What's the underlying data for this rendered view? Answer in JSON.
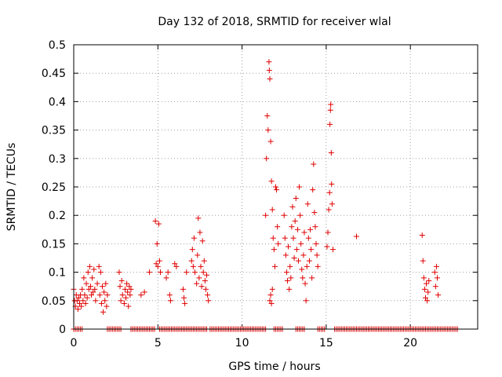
{
  "chart_data": {
    "type": "scatter",
    "title": "Day 132 of 2018, SRMTID for receiver wlal",
    "xlabel": "GPS time / hours",
    "ylabel": "SRMTID / TECUs",
    "xlim": [
      0,
      24
    ],
    "ylim": [
      0,
      0.5
    ],
    "xticks": [
      0,
      5,
      10,
      15,
      20
    ],
    "yticks": [
      0,
      0.05,
      0.1,
      0.15,
      0.2,
      0.25,
      0.3,
      0.35,
      0.4,
      0.45,
      0.5
    ],
    "xtick_labels": [
      "0",
      "5",
      "10",
      "15",
      "20"
    ],
    "ytick_labels": [
      "0",
      "0.05",
      "0.1",
      "0.15",
      "0.2",
      "0.25",
      "0.3",
      "0.35",
      "0.4",
      "0.45",
      "0.5"
    ],
    "grid": true,
    "marker": "+",
    "color": "#e00000",
    "series": [
      {
        "points": [
          [
            0.0,
            0.07
          ],
          [
            0.05,
            0.05
          ],
          [
            0.1,
            0.04
          ],
          [
            0.15,
            0.06
          ],
          [
            0.2,
            0.05
          ],
          [
            0.25,
            0.035
          ],
          [
            0.3,
            0.055
          ],
          [
            0.35,
            0.045
          ],
          [
            0.4,
            0.06
          ],
          [
            0.45,
            0.04
          ],
          [
            0.5,
            0.07
          ],
          [
            0.55,
            0.05
          ],
          [
            0.6,
            0.09
          ],
          [
            0.65,
            0.06
          ],
          [
            0.7,
            0.045
          ],
          [
            0.75,
            0.08
          ],
          [
            0.8,
            0.055
          ],
          [
            0.85,
            0.1
          ],
          [
            0.9,
            0.07
          ],
          [
            0.95,
            0.11
          ],
          [
            1.0,
            0.075
          ],
          [
            1.05,
            0.06
          ],
          [
            1.1,
            0.09
          ],
          [
            1.15,
            0.065
          ],
          [
            1.2,
            0.105
          ],
          [
            1.25,
            0.07
          ],
          [
            1.3,
            0.05
          ],
          [
            1.4,
            0.08
          ],
          [
            1.5,
            0.11
          ],
          [
            1.55,
            0.06
          ],
          [
            1.6,
            0.1
          ],
          [
            1.65,
            0.045
          ],
          [
            1.7,
            0.075
          ],
          [
            1.75,
            0.03
          ],
          [
            1.8,
            0.065
          ],
          [
            1.85,
            0.05
          ],
          [
            1.9,
            0.08
          ],
          [
            1.95,
            0.04
          ],
          [
            2.0,
            0.06
          ],
          [
            2.7,
            0.1
          ],
          [
            2.75,
            0.075
          ],
          [
            2.8,
            0.05
          ],
          [
            2.85,
            0.085
          ],
          [
            2.9,
            0.06
          ],
          [
            3.0,
            0.045
          ],
          [
            3.05,
            0.07
          ],
          [
            3.1,
            0.055
          ],
          [
            3.15,
            0.08
          ],
          [
            3.2,
            0.065
          ],
          [
            3.25,
            0.04
          ],
          [
            3.3,
            0.075
          ],
          [
            3.35,
            0.06
          ],
          [
            3.4,
            0.07
          ],
          [
            4.0,
            0.06
          ],
          [
            4.2,
            0.065
          ],
          [
            4.5,
            0.1
          ],
          [
            4.85,
            0.19
          ],
          [
            4.9,
            0.115
          ],
          [
            4.95,
            0.15
          ],
          [
            5.0,
            0.11
          ],
          [
            5.05,
            0.185
          ],
          [
            5.1,
            0.12
          ],
          [
            5.15,
            0.1
          ],
          [
            5.5,
            0.09
          ],
          [
            5.6,
            0.1
          ],
          [
            5.7,
            0.06
          ],
          [
            5.75,
            0.05
          ],
          [
            6.0,
            0.115
          ],
          [
            6.1,
            0.11
          ],
          [
            6.5,
            0.07
          ],
          [
            6.55,
            0.055
          ],
          [
            6.6,
            0.045
          ],
          [
            6.7,
            0.1
          ],
          [
            7.0,
            0.12
          ],
          [
            7.05,
            0.14
          ],
          [
            7.1,
            0.11
          ],
          [
            7.15,
            0.16
          ],
          [
            7.2,
            0.1
          ],
          [
            7.3,
            0.08
          ],
          [
            7.35,
            0.13
          ],
          [
            7.4,
            0.195
          ],
          [
            7.45,
            0.09
          ],
          [
            7.5,
            0.17
          ],
          [
            7.55,
            0.11
          ],
          [
            7.6,
            0.075
          ],
          [
            7.65,
            0.155
          ],
          [
            7.7,
            0.1
          ],
          [
            7.75,
            0.12
          ],
          [
            7.8,
            0.085
          ],
          [
            7.85,
            0.07
          ],
          [
            7.9,
            0.095
          ],
          [
            7.95,
            0.06
          ],
          [
            8.0,
            0.05
          ],
          [
            11.4,
            0.2
          ],
          [
            11.45,
            0.3
          ],
          [
            11.5,
            0.375
          ],
          [
            11.55,
            0.35
          ],
          [
            11.6,
            0.47
          ],
          [
            11.62,
            0.455
          ],
          [
            11.65,
            0.44
          ],
          [
            11.7,
            0.33
          ],
          [
            11.75,
            0.26
          ],
          [
            11.8,
            0.21
          ],
          [
            11.85,
            0.16
          ],
          [
            11.9,
            0.14
          ],
          [
            11.95,
            0.11
          ],
          [
            12.0,
            0.25
          ],
          [
            12.05,
            0.245
          ],
          [
            12.1,
            0.18
          ],
          [
            12.15,
            0.15
          ],
          [
            11.7,
            0.06
          ],
          [
            11.65,
            0.05
          ],
          [
            11.75,
            0.045
          ],
          [
            11.8,
            0.07
          ],
          [
            12.5,
            0.2
          ],
          [
            12.55,
            0.16
          ],
          [
            12.6,
            0.13
          ],
          [
            12.65,
            0.1
          ],
          [
            12.7,
            0.085
          ],
          [
            12.75,
            0.145
          ],
          [
            12.8,
            0.07
          ],
          [
            12.85,
            0.11
          ],
          [
            12.9,
            0.09
          ],
          [
            12.95,
            0.18
          ],
          [
            13.0,
            0.215
          ],
          [
            13.05,
            0.16
          ],
          [
            13.1,
            0.125
          ],
          [
            13.15,
            0.19
          ],
          [
            13.2,
            0.23
          ],
          [
            13.25,
            0.14
          ],
          [
            13.3,
            0.175
          ],
          [
            13.35,
            0.12
          ],
          [
            13.4,
            0.25
          ],
          [
            13.45,
            0.2
          ],
          [
            13.5,
            0.15
          ],
          [
            13.55,
            0.105
          ],
          [
            13.6,
            0.09
          ],
          [
            13.65,
            0.13
          ],
          [
            13.7,
            0.17
          ],
          [
            13.75,
            0.08
          ],
          [
            13.8,
            0.05
          ],
          [
            13.85,
            0.11
          ],
          [
            13.9,
            0.22
          ],
          [
            13.95,
            0.16
          ],
          [
            14.0,
            0.12
          ],
          [
            14.05,
            0.175
          ],
          [
            14.1,
            0.14
          ],
          [
            14.15,
            0.09
          ],
          [
            14.2,
            0.245
          ],
          [
            14.25,
            0.29
          ],
          [
            14.3,
            0.205
          ],
          [
            14.35,
            0.18
          ],
          [
            14.4,
            0.15
          ],
          [
            14.45,
            0.13
          ],
          [
            14.5,
            0.11
          ],
          [
            15.05,
            0.145
          ],
          [
            15.1,
            0.17
          ],
          [
            15.15,
            0.21
          ],
          [
            15.2,
            0.24
          ],
          [
            15.22,
            0.36
          ],
          [
            15.25,
            0.385
          ],
          [
            15.27,
            0.395
          ],
          [
            15.3,
            0.31
          ],
          [
            15.32,
            0.255
          ],
          [
            15.35,
            0.22
          ],
          [
            15.4,
            0.14
          ],
          [
            16.8,
            0.163
          ],
          [
            20.7,
            0.165
          ],
          [
            20.75,
            0.12
          ],
          [
            20.8,
            0.09
          ],
          [
            20.85,
            0.07
          ],
          [
            20.9,
            0.055
          ],
          [
            20.95,
            0.08
          ],
          [
            21.0,
            0.05
          ],
          [
            21.05,
            0.065
          ],
          [
            21.1,
            0.085
          ],
          [
            21.45,
            0.1
          ],
          [
            21.5,
            0.075
          ],
          [
            21.55,
            0.11
          ],
          [
            21.6,
            0.09
          ],
          [
            21.65,
            0.06
          ]
        ]
      },
      {
        "name": "",
        "baseline_ranges": [
          [
            0.0,
            0.5
          ],
          [
            2.0,
            2.8
          ],
          [
            3.4,
            4.8
          ],
          [
            5.1,
            7.9
          ],
          [
            8.1,
            11.4
          ],
          [
            11.9,
            12.4
          ],
          [
            13.2,
            13.7
          ],
          [
            14.5,
            14.9
          ],
          [
            15.5,
            22.8
          ]
        ],
        "baseline_value": 0
      }
    ]
  }
}
